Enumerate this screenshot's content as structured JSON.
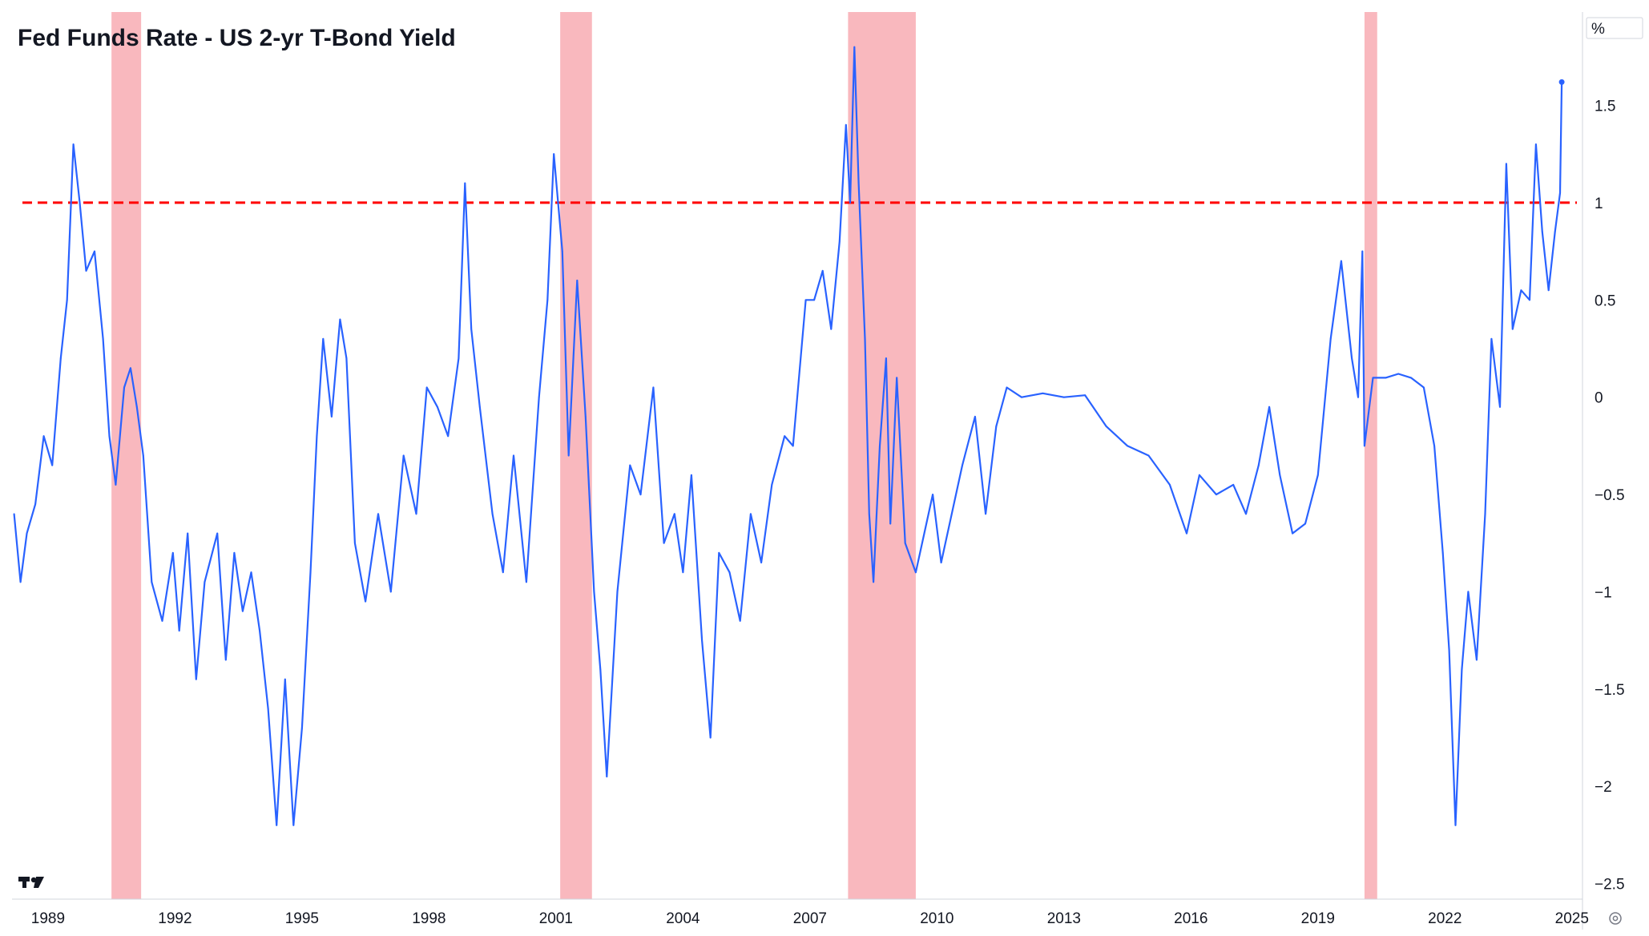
{
  "chart_data": {
    "type": "line",
    "title": "Fed Funds Rate - US 2-yr T-Bond Yield",
    "unit": "%",
    "xlabel": "",
    "ylabel": "",
    "x_ticks": [
      "1989",
      "1992",
      "1995",
      "1998",
      "2001",
      "2004",
      "2007",
      "2010",
      "2013",
      "2016",
      "2019",
      "2022",
      "2025"
    ],
    "y_ticks": [
      1.5,
      1,
      0.5,
      0,
      -0.5,
      -1,
      -1.5,
      -2,
      -2.5
    ],
    "xlim": [
      1988.15,
      2025.25
    ],
    "ylim": [
      -2.58,
      1.98
    ],
    "grid": false,
    "legend": "none",
    "reference_line": {
      "y": 1.0,
      "color": "#ff0000",
      "style": "dashed"
    },
    "recession_bands": [
      {
        "start": 1990.5,
        "end": 1991.2
      },
      {
        "start": 2001.1,
        "end": 2001.85
      },
      {
        "start": 2007.9,
        "end": 2009.5
      },
      {
        "start": 2020.1,
        "end": 2020.4
      }
    ],
    "colors": {
      "line": "#2962ff",
      "recession": "#f9b8be",
      "reference": "#ff0000",
      "axis": "#d1d4dc"
    },
    "series": [
      {
        "values": [
          [
            1988.2,
            -0.6
          ],
          [
            1988.35,
            -0.95
          ],
          [
            1988.5,
            -0.7
          ],
          [
            1988.7,
            -0.55
          ],
          [
            1988.9,
            -0.2
          ],
          [
            1989.1,
            -0.35
          ],
          [
            1989.3,
            0.2
          ],
          [
            1989.45,
            0.5
          ],
          [
            1989.6,
            1.3
          ],
          [
            1989.75,
            1.0
          ],
          [
            1989.9,
            0.65
          ],
          [
            1990.1,
            0.75
          ],
          [
            1990.3,
            0.3
          ],
          [
            1990.45,
            -0.2
          ],
          [
            1990.6,
            -0.45
          ],
          [
            1990.8,
            0.05
          ],
          [
            1990.95,
            0.15
          ],
          [
            1991.1,
            -0.05
          ],
          [
            1991.25,
            -0.3
          ],
          [
            1991.45,
            -0.95
          ],
          [
            1991.7,
            -1.15
          ],
          [
            1991.95,
            -0.8
          ],
          [
            1992.1,
            -1.2
          ],
          [
            1992.3,
            -0.7
          ],
          [
            1992.5,
            -1.45
          ],
          [
            1992.7,
            -0.95
          ],
          [
            1993.0,
            -0.7
          ],
          [
            1993.2,
            -1.35
          ],
          [
            1993.4,
            -0.8
          ],
          [
            1993.6,
            -1.1
          ],
          [
            1993.8,
            -0.9
          ],
          [
            1994.0,
            -1.2
          ],
          [
            1994.2,
            -1.6
          ],
          [
            1994.4,
            -2.2
          ],
          [
            1994.6,
            -1.45
          ],
          [
            1994.8,
            -2.2
          ],
          [
            1995.0,
            -1.7
          ],
          [
            1995.2,
            -0.9
          ],
          [
            1995.35,
            -0.2
          ],
          [
            1995.5,
            0.3
          ],
          [
            1995.7,
            -0.1
          ],
          [
            1995.9,
            0.4
          ],
          [
            1996.05,
            0.2
          ],
          [
            1996.25,
            -0.75
          ],
          [
            1996.5,
            -1.05
          ],
          [
            1996.8,
            -0.6
          ],
          [
            1997.1,
            -1.0
          ],
          [
            1997.4,
            -0.3
          ],
          [
            1997.7,
            -0.6
          ],
          [
            1997.95,
            0.05
          ],
          [
            1998.2,
            -0.05
          ],
          [
            1998.45,
            -0.2
          ],
          [
            1998.7,
            0.2
          ],
          [
            1998.85,
            1.1
          ],
          [
            1999.0,
            0.35
          ],
          [
            1999.2,
            -0.05
          ],
          [
            1999.5,
            -0.6
          ],
          [
            1999.75,
            -0.9
          ],
          [
            2000.0,
            -0.3
          ],
          [
            2000.3,
            -0.95
          ],
          [
            2000.6,
            0.0
          ],
          [
            2000.8,
            0.5
          ],
          [
            2000.95,
            1.25
          ],
          [
            2001.15,
            0.75
          ],
          [
            2001.3,
            -0.3
          ],
          [
            2001.5,
            0.6
          ],
          [
            2001.7,
            -0.1
          ],
          [
            2001.9,
            -1.0
          ],
          [
            2002.05,
            -1.4
          ],
          [
            2002.2,
            -1.95
          ],
          [
            2002.45,
            -1.0
          ],
          [
            2002.75,
            -0.35
          ],
          [
            2003.0,
            -0.5
          ],
          [
            2003.3,
            0.05
          ],
          [
            2003.55,
            -0.75
          ],
          [
            2003.8,
            -0.6
          ],
          [
            2004.0,
            -0.9
          ],
          [
            2004.2,
            -0.4
          ],
          [
            2004.45,
            -1.25
          ],
          [
            2004.65,
            -1.75
          ],
          [
            2004.85,
            -0.8
          ],
          [
            2005.1,
            -0.9
          ],
          [
            2005.35,
            -1.15
          ],
          [
            2005.6,
            -0.6
          ],
          [
            2005.85,
            -0.85
          ],
          [
            2006.1,
            -0.45
          ],
          [
            2006.4,
            -0.2
          ],
          [
            2006.6,
            -0.25
          ],
          [
            2006.9,
            0.5
          ],
          [
            2007.1,
            0.5
          ],
          [
            2007.3,
            0.65
          ],
          [
            2007.5,
            0.35
          ],
          [
            2007.7,
            0.8
          ],
          [
            2007.85,
            1.4
          ],
          [
            2007.95,
            1.0
          ],
          [
            2008.05,
            1.8
          ],
          [
            2008.15,
            1.1
          ],
          [
            2008.3,
            0.3
          ],
          [
            2008.4,
            -0.6
          ],
          [
            2008.5,
            -0.95
          ],
          [
            2008.65,
            -0.25
          ],
          [
            2008.8,
            0.2
          ],
          [
            2008.9,
            -0.65
          ],
          [
            2009.05,
            0.1
          ],
          [
            2009.25,
            -0.75
          ],
          [
            2009.5,
            -0.9
          ],
          [
            2009.7,
            -0.7
          ],
          [
            2009.9,
            -0.5
          ],
          [
            2010.1,
            -0.85
          ],
          [
            2010.35,
            -0.6
          ],
          [
            2010.6,
            -0.35
          ],
          [
            2010.9,
            -0.1
          ],
          [
            2011.15,
            -0.6
          ],
          [
            2011.4,
            -0.15
          ],
          [
            2011.65,
            0.05
          ],
          [
            2012.0,
            0.0
          ],
          [
            2012.5,
            0.02
          ],
          [
            2013.0,
            0.0
          ],
          [
            2013.5,
            0.01
          ],
          [
            2014.0,
            -0.15
          ],
          [
            2014.5,
            -0.25
          ],
          [
            2015.0,
            -0.3
          ],
          [
            2015.5,
            -0.45
          ],
          [
            2015.9,
            -0.7
          ],
          [
            2016.2,
            -0.4
          ],
          [
            2016.6,
            -0.5
          ],
          [
            2017.0,
            -0.45
          ],
          [
            2017.3,
            -0.6
          ],
          [
            2017.6,
            -0.35
          ],
          [
            2017.85,
            -0.05
          ],
          [
            2018.1,
            -0.4
          ],
          [
            2018.4,
            -0.7
          ],
          [
            2018.7,
            -0.65
          ],
          [
            2019.0,
            -0.4
          ],
          [
            2019.3,
            0.3
          ],
          [
            2019.55,
            0.7
          ],
          [
            2019.8,
            0.2
          ],
          [
            2019.95,
            0.0
          ],
          [
            2020.05,
            0.75
          ],
          [
            2020.1,
            -0.25
          ],
          [
            2020.3,
            0.1
          ],
          [
            2020.6,
            0.1
          ],
          [
            2020.9,
            0.12
          ],
          [
            2021.2,
            0.1
          ],
          [
            2021.5,
            0.05
          ],
          [
            2021.75,
            -0.25
          ],
          [
            2021.95,
            -0.8
          ],
          [
            2022.1,
            -1.3
          ],
          [
            2022.25,
            -2.2
          ],
          [
            2022.4,
            -1.4
          ],
          [
            2022.55,
            -1.0
          ],
          [
            2022.75,
            -1.35
          ],
          [
            2022.95,
            -0.6
          ],
          [
            2023.1,
            0.3
          ],
          [
            2023.3,
            -0.05
          ],
          [
            2023.45,
            1.2
          ],
          [
            2023.6,
            0.35
          ],
          [
            2023.8,
            0.55
          ],
          [
            2024.0,
            0.5
          ],
          [
            2024.15,
            1.3
          ],
          [
            2024.3,
            0.85
          ],
          [
            2024.45,
            0.55
          ],
          [
            2024.6,
            0.85
          ],
          [
            2024.72,
            1.05
          ],
          [
            2024.76,
            1.62
          ]
        ]
      }
    ]
  }
}
